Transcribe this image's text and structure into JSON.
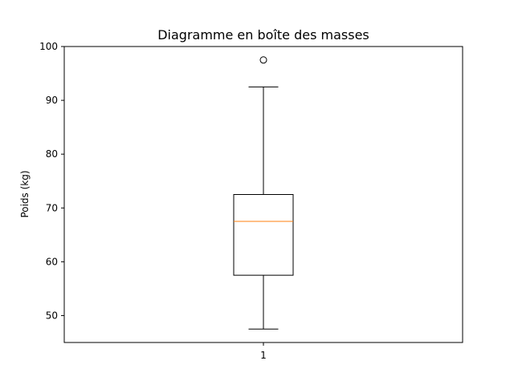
{
  "chart_data": {
    "type": "boxplot",
    "title": "Diagramme en boîte des masses",
    "xlabel": "",
    "ylabel": "Poids (kg)",
    "ylim": [
      45,
      100
    ],
    "yticks": [
      50,
      60,
      70,
      80,
      90,
      100
    ],
    "categories": [
      "1"
    ],
    "boxes": [
      {
        "category": "1",
        "whisker_low": 47.5,
        "q1": 57.5,
        "median": 67.5,
        "q3": 72.5,
        "whisker_high": 92.5,
        "outliers": [
          97.5
        ]
      }
    ],
    "grid": false,
    "colors": {
      "box": "#000000",
      "median": "#ff7f0e",
      "outlier": "#000000"
    }
  }
}
